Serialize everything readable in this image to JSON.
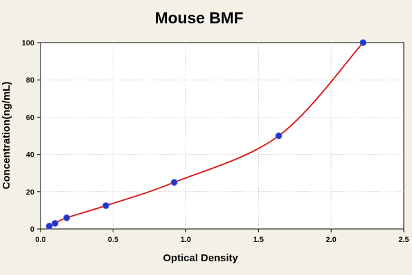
{
  "chart_data": {
    "type": "scatter",
    "title": "Mouse BMF",
    "xlabel": "Optical Density",
    "ylabel": "Concentration(ng/mL)",
    "xlim": [
      0,
      2.5
    ],
    "ylim": [
      0,
      100
    ],
    "x_ticks": [
      "0.0",
      "0.5",
      "1.0",
      "1.5",
      "2.0",
      "2.5"
    ],
    "y_ticks": [
      "0",
      "20",
      "40",
      "60",
      "80",
      "100"
    ],
    "grid": true,
    "series": [
      {
        "points": [
          {
            "x": 0.06,
            "y": 1.5
          },
          {
            "x": 0.1,
            "y": 3
          },
          {
            "x": 0.18,
            "y": 6
          },
          {
            "x": 0.45,
            "y": 12.5
          },
          {
            "x": 0.92,
            "y": 25
          },
          {
            "x": 1.64,
            "y": 50
          },
          {
            "x": 2.22,
            "y": 100
          }
        ],
        "point_color": "#2236c8",
        "curve_color": "#d42020"
      }
    ],
    "background_color": "#f3f1e6",
    "plot_background_color": "#ffffff"
  }
}
